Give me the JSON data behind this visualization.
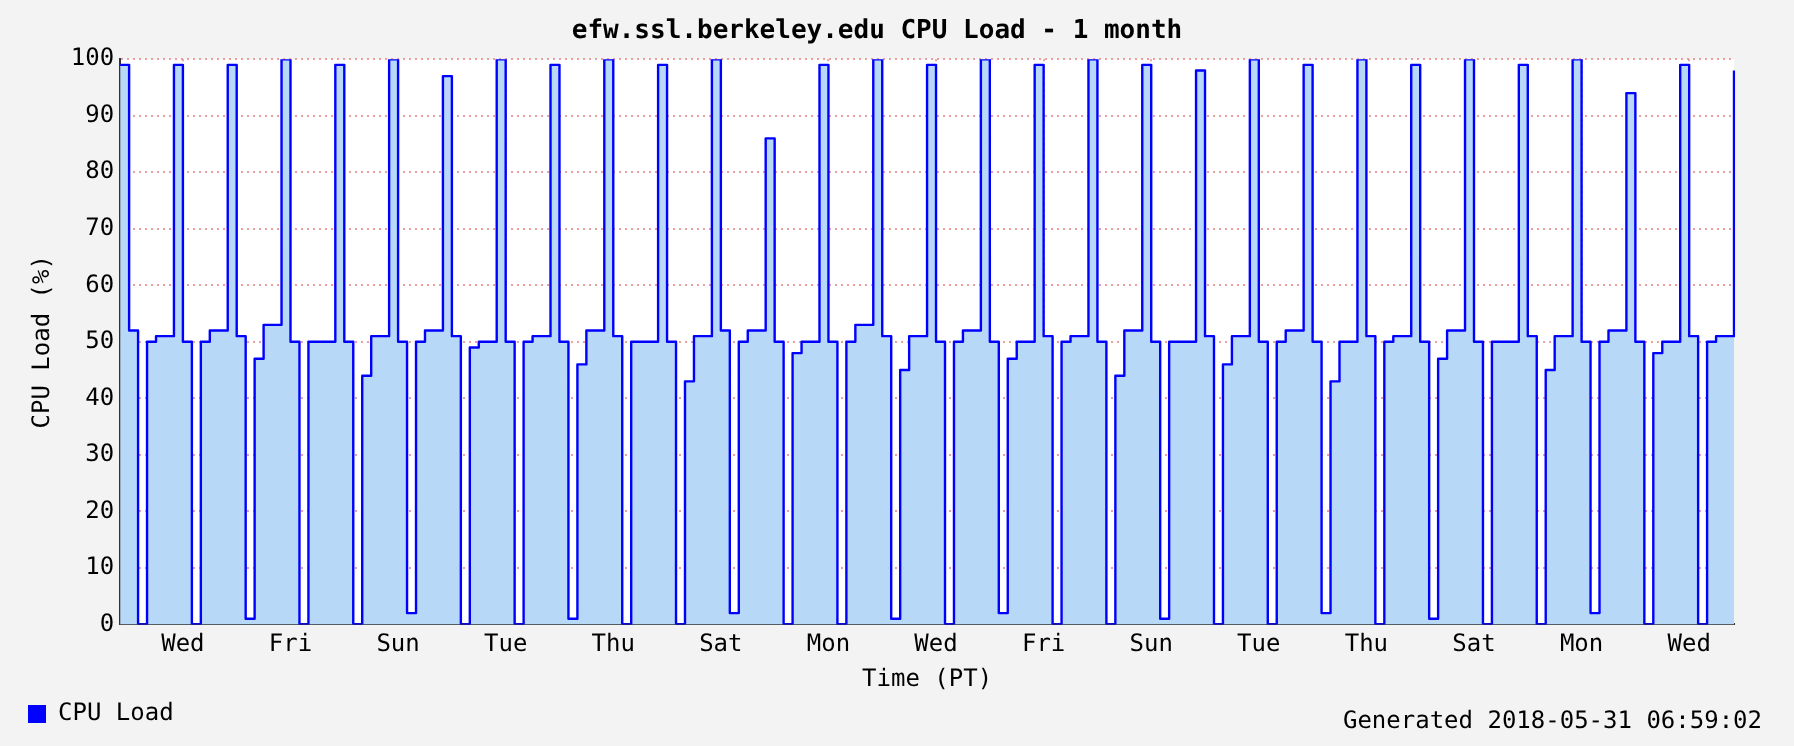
{
  "chart_data": {
    "type": "step",
    "title": "efw.ssl.berkeley.edu CPU Load - 1 month",
    "xlabel": "Time (PT)",
    "ylabel": "CPU Load (%)",
    "annotations": [
      "Generated 2018-05-31 06:59:02"
    ],
    "categories": [
      null,
      null,
      null,
      null,
      null,
      null,
      null,
      "Wed",
      null,
      null,
      null,
      null,
      null,
      null,
      null,
      null,
      null,
      null,
      null,
      "Fri",
      null,
      null,
      null,
      null,
      null,
      null,
      null,
      null,
      null,
      null,
      null,
      "Sun",
      null,
      null,
      null,
      null,
      null,
      null,
      null,
      null,
      null,
      null,
      null,
      "Tue",
      null,
      null,
      null,
      null,
      null,
      null,
      null,
      null,
      null,
      null,
      null,
      "Thu",
      null,
      null,
      null,
      null,
      null,
      null,
      null,
      null,
      null,
      null,
      null,
      "Sat",
      null,
      null,
      null,
      null,
      null,
      null,
      null,
      null,
      null,
      null,
      null,
      "Mon",
      null,
      null,
      null,
      null,
      null,
      null,
      null,
      null,
      null,
      null,
      null,
      "Wed",
      null,
      null,
      null,
      null,
      null,
      null,
      null,
      null,
      null,
      null,
      null,
      "Fri",
      null,
      null,
      null,
      null,
      null,
      null,
      null,
      null,
      null,
      null,
      null,
      "Sun",
      null,
      null,
      null,
      null,
      null,
      null,
      null,
      null,
      null,
      null,
      null,
      "Tue",
      null,
      null,
      null,
      null,
      null,
      null,
      null,
      null,
      null,
      null,
      null,
      "Thu",
      null,
      null,
      null,
      null,
      null,
      null,
      null,
      null,
      null,
      null,
      null,
      "Sat",
      null,
      null,
      null,
      null,
      null,
      null,
      null,
      null,
      null,
      null,
      null,
      "Mon",
      null,
      null,
      null,
      null,
      null,
      null,
      null,
      null,
      null,
      null,
      null,
      "Wed",
      null,
      null,
      null,
      null,
      null
    ],
    "series": [
      {
        "name": "CPU Load",
        "color": "#0000ff",
        "values": [
          99,
          52,
          0,
          50,
          51,
          51,
          99,
          50,
          0,
          50,
          52,
          52,
          99,
          51,
          1,
          47,
          53,
          53,
          100,
          50,
          0,
          50,
          50,
          50,
          99,
          50,
          0,
          44,
          51,
          51,
          100,
          50,
          2,
          50,
          52,
          52,
          97,
          51,
          0,
          49,
          50,
          50,
          100,
          50,
          0,
          50,
          51,
          51,
          99,
          50,
          1,
          46,
          52,
          52,
          100,
          51,
          0,
          50,
          50,
          50,
          99,
          50,
          0,
          43,
          51,
          51,
          100,
          52,
          2,
          50,
          52,
          52,
          86,
          50,
          0,
          48,
          50,
          50,
          99,
          50,
          0,
          50,
          53,
          53,
          100,
          51,
          1,
          45,
          51,
          51,
          99,
          50,
          0,
          50,
          52,
          52,
          100,
          50,
          2,
          47,
          50,
          50,
          99,
          51,
          0,
          50,
          51,
          51,
          100,
          50,
          0,
          44,
          52,
          52,
          99,
          50,
          1,
          50,
          50,
          50,
          98,
          51,
          0,
          46,
          51,
          51,
          100,
          50,
          0,
          50,
          52,
          52,
          99,
          50,
          2,
          43,
          50,
          50,
          100,
          51,
          0,
          50,
          51,
          51,
          99,
          50,
          1,
          47,
          52,
          52,
          100,
          50,
          0,
          50,
          50,
          50,
          99,
          51,
          0,
          45,
          51,
          51,
          100,
          50,
          2,
          50,
          52,
          52,
          94,
          50,
          0,
          48,
          50,
          50,
          99,
          51,
          0,
          50,
          51,
          51,
          98
        ]
      }
    ],
    "ylim": [
      0,
      100
    ],
    "yticks": [
      0,
      10,
      20,
      30,
      40,
      50,
      60,
      70,
      80,
      90,
      100
    ],
    "grid": true,
    "legend": "bottom left"
  }
}
